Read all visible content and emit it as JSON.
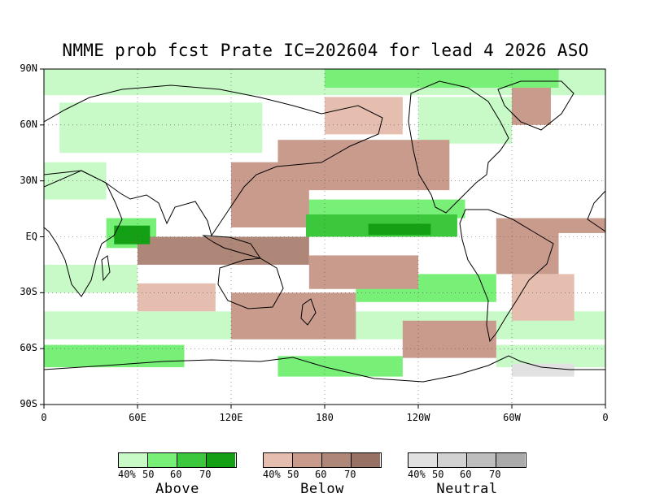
{
  "title": "NMME prob fcst Prate IC=202604 for lead 4 2026 ASO",
  "map": {
    "projection": "cylindrical-equidistant",
    "lon_range": [
      0,
      360
    ],
    "lat_range": [
      -90,
      90
    ],
    "grid": true,
    "lat_ticks": [
      "90N",
      "60N",
      "30N",
      "EQ",
      "30S",
      "60S",
      "90S"
    ],
    "lon_ticks": [
      "0",
      "60E",
      "120E",
      "180",
      "120W",
      "60W",
      "0"
    ],
    "regions": [
      {
        "cat": "above",
        "level": 4,
        "lon": [
          208,
          248
        ],
        "lat": [
          1,
          7
        ]
      },
      {
        "cat": "above",
        "level": 4,
        "lon": [
          45,
          68
        ],
        "lat": [
          -4,
          6
        ]
      },
      {
        "cat": "above",
        "level": 3,
        "lon": [
          168,
          265
        ],
        "lat": [
          0,
          12
        ]
      },
      {
        "cat": "above",
        "level": 2,
        "lon": [
          150,
          270
        ],
        "lat": [
          10,
          20
        ]
      },
      {
        "cat": "above",
        "level": 2,
        "lon": [
          40,
          72
        ],
        "lat": [
          -6,
          10
        ]
      },
      {
        "cat": "above",
        "level": 2,
        "lon": [
          200,
          290
        ],
        "lat": [
          -35,
          -20
        ]
      },
      {
        "cat": "above",
        "level": 1,
        "lon": [
          0,
          360
        ],
        "lat": [
          76,
          90
        ]
      },
      {
        "cat": "above",
        "level": 2,
        "lon": [
          180,
          330
        ],
        "lat": [
          80,
          90
        ]
      },
      {
        "cat": "above",
        "level": 1,
        "lon": [
          10,
          140
        ],
        "lat": [
          45,
          72
        ]
      },
      {
        "cat": "above",
        "level": 1,
        "lon": [
          0,
          40
        ],
        "lat": [
          20,
          40
        ]
      },
      {
        "cat": "above",
        "level": 1,
        "lon": [
          0,
          360
        ],
        "lat": [
          -55,
          -40
        ]
      },
      {
        "cat": "above",
        "level": 2,
        "lon": [
          0,
          90
        ],
        "lat": [
          -70,
          -58
        ]
      },
      {
        "cat": "above",
        "level": 2,
        "lon": [
          150,
          230
        ],
        "lat": [
          -75,
          -64
        ]
      },
      {
        "cat": "above",
        "level": 1,
        "lon": [
          290,
          360
        ],
        "lat": [
          -70,
          -58
        ]
      },
      {
        "cat": "above",
        "level": 1,
        "lon": [
          240,
          300
        ],
        "lat": [
          50,
          75
        ]
      },
      {
        "cat": "above",
        "level": 1,
        "lon": [
          0,
          60
        ],
        "lat": [
          -30,
          -15
        ]
      },
      {
        "cat": "below",
        "level": 3,
        "lon": [
          60,
          170
        ],
        "lat": [
          -15,
          0
        ]
      },
      {
        "cat": "below",
        "level": 2,
        "lon": [
          120,
          170
        ],
        "lat": [
          5,
          40
        ]
      },
      {
        "cat": "below",
        "level": 2,
        "lon": [
          150,
          260
        ],
        "lat": [
          25,
          52
        ]
      },
      {
        "cat": "below",
        "level": 2,
        "lon": [
          290,
          330
        ],
        "lat": [
          -20,
          10
        ]
      },
      {
        "cat": "below",
        "level": 2,
        "lon": [
          320,
          360
        ],
        "lat": [
          2,
          10
        ]
      },
      {
        "cat": "below",
        "level": 2,
        "lon": [
          170,
          240
        ],
        "lat": [
          -28,
          -10
        ]
      },
      {
        "cat": "below",
        "level": 2,
        "lon": [
          120,
          200
        ],
        "lat": [
          -55,
          -30
        ]
      },
      {
        "cat": "below",
        "level": 2,
        "lon": [
          230,
          290
        ],
        "lat": [
          -65,
          -45
        ]
      },
      {
        "cat": "below",
        "level": 1,
        "lon": [
          300,
          340
        ],
        "lat": [
          -45,
          -20
        ]
      },
      {
        "cat": "below",
        "level": 2,
        "lon": [
          300,
          325
        ],
        "lat": [
          60,
          80
        ]
      },
      {
        "cat": "below",
        "level": 1,
        "lon": [
          180,
          230
        ],
        "lat": [
          55,
          75
        ]
      },
      {
        "cat": "below",
        "level": 1,
        "lon": [
          60,
          110
        ],
        "lat": [
          -40,
          -25
        ]
      },
      {
        "cat": "neutral",
        "level": 1,
        "lon": [
          300,
          340
        ],
        "lat": [
          -75,
          -68
        ]
      }
    ]
  },
  "legends": [
    {
      "name": "Above",
      "ticks": [
        "40%",
        "50",
        "60",
        "70"
      ],
      "colors": [
        "#c8fac8",
        "#78f078",
        "#3cc83c",
        "#14a014"
      ]
    },
    {
      "name": "Below",
      "ticks": [
        "40%",
        "50",
        "60",
        "70"
      ],
      "colors": [
        "#e6beaf",
        "#c89b8c",
        "#af8778",
        "#967164"
      ]
    },
    {
      "name": "Neutral",
      "ticks": [
        "40%",
        "50",
        "60",
        "70"
      ],
      "colors": [
        "#e1e1e1",
        "#d2d2d2",
        "#bebebe",
        "#aaaaaa"
      ]
    }
  ]
}
